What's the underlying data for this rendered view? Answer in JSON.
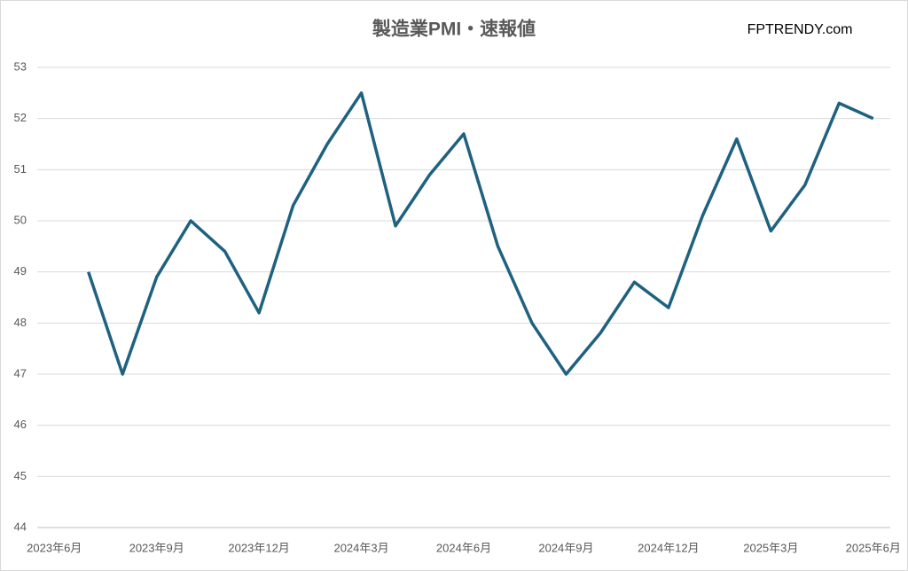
{
  "chart_data": {
    "type": "line",
    "title": "製造業PMI・速報値",
    "watermark": "FPTRENDY.com",
    "categories": [
      "2023年6月",
      null,
      null,
      "2023年9月",
      null,
      null,
      "2023年12月",
      null,
      null,
      "2024年3月",
      null,
      null,
      "2024年6月",
      null,
      null,
      "2024年9月",
      null,
      null,
      "2024年12月",
      null,
      null,
      "2025年3月",
      null,
      null,
      "2025年6月"
    ],
    "series": [
      {
        "name": "製造業PMI・速報値",
        "color": "#1f6180",
        "values": [
          null,
          49.0,
          47.0,
          48.9,
          50.0,
          49.4,
          48.2,
          50.3,
          51.5,
          52.5,
          49.9,
          50.9,
          51.7,
          49.5,
          48.0,
          47.0,
          47.8,
          48.8,
          48.3,
          50.1,
          51.6,
          49.8,
          50.7,
          52.3,
          52.0
        ]
      }
    ],
    "ylim": [
      44,
      53
    ],
    "yticks": [
      44,
      45,
      46,
      47,
      48,
      49,
      50,
      51,
      52,
      53
    ],
    "grid": true
  }
}
